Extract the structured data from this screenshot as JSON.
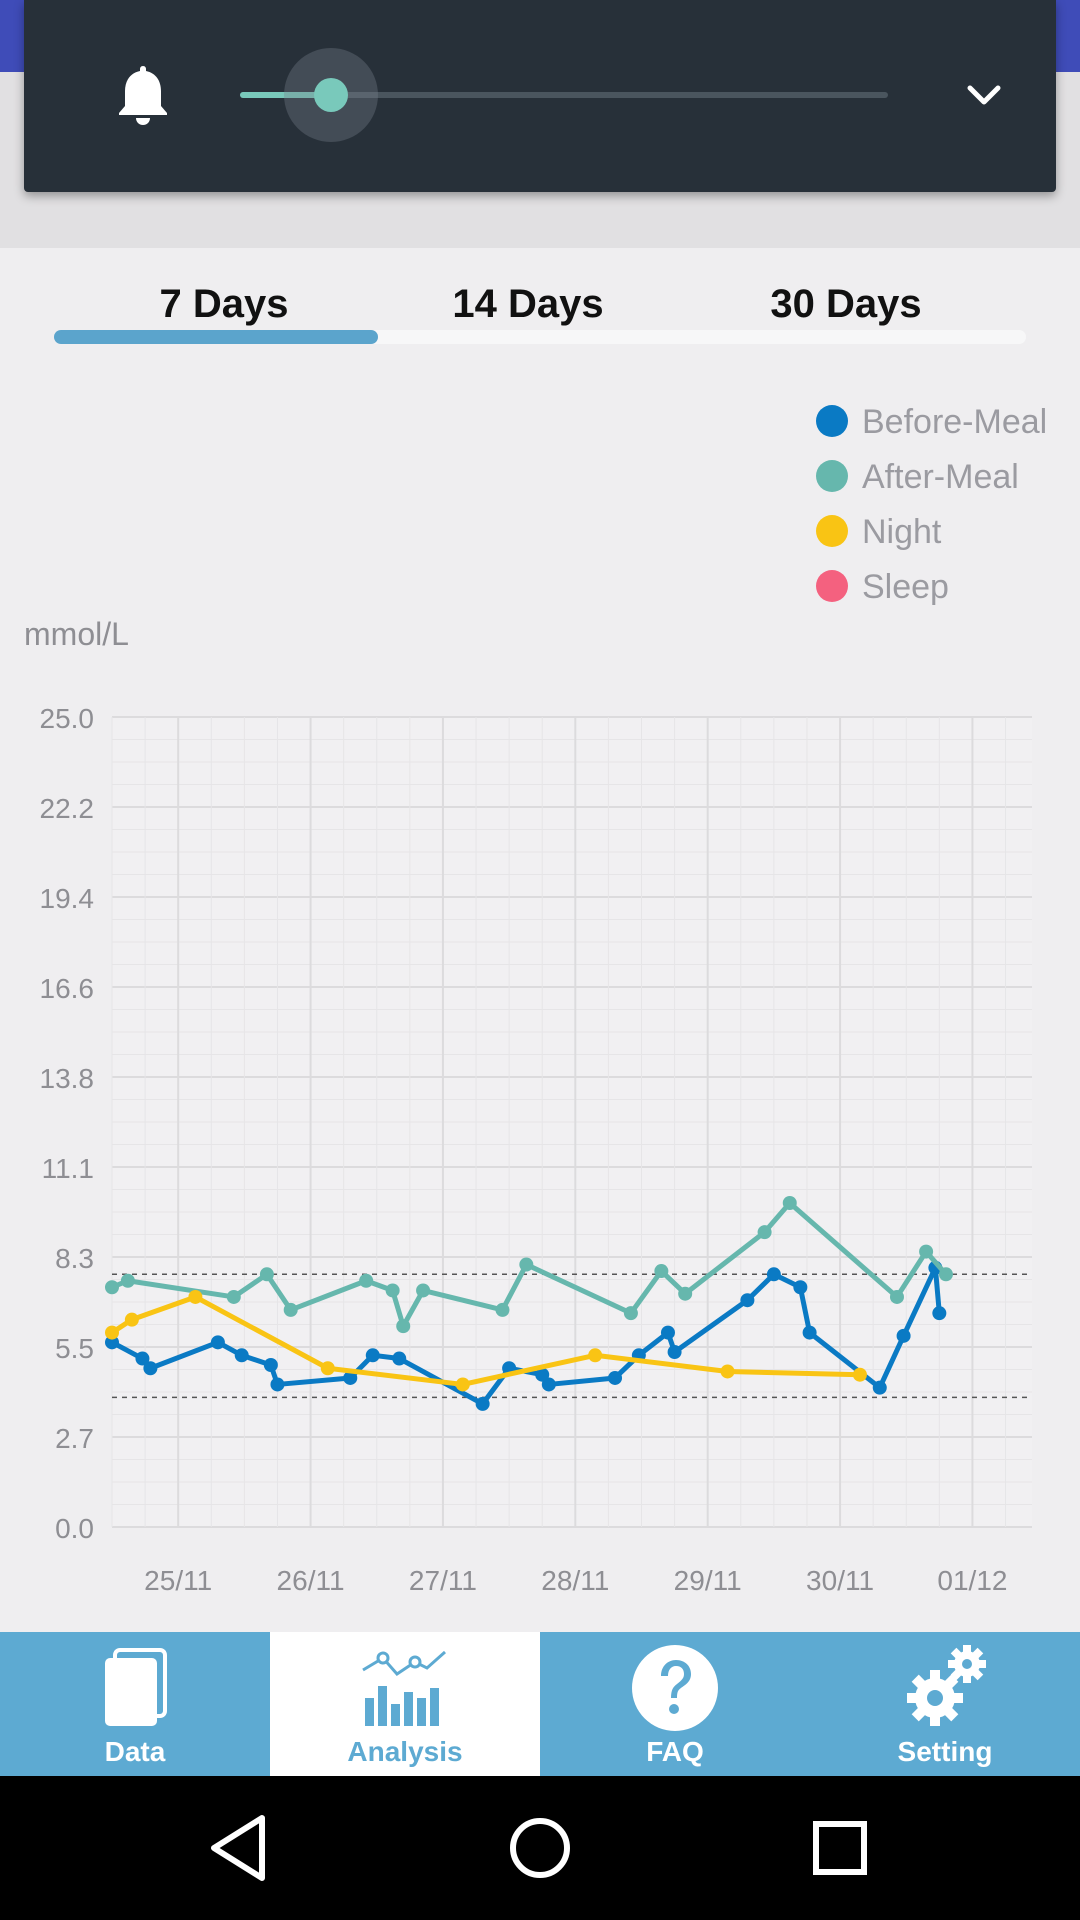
{
  "colors": {
    "before_meal": "#0a7ac4",
    "after_meal": "#66b7ad",
    "night": "#f9c414",
    "sleep": "#f4617f",
    "tab_accent": "#5ba4cc",
    "nav_background": "#5daad2"
  },
  "volume": {
    "level": 0.14
  },
  "tabs": [
    {
      "label": "7 Days",
      "selected": true
    },
    {
      "label": "14 Days",
      "selected": false
    },
    {
      "label": "30 Days",
      "selected": false
    }
  ],
  "legend": [
    {
      "label": "Before-Meal",
      "color": "#0a7ac4"
    },
    {
      "label": "After-Meal",
      "color": "#66b7ad"
    },
    {
      "label": "Night",
      "color": "#f9c414"
    },
    {
      "label": "Sleep",
      "color": "#f4617f"
    }
  ],
  "chart": {
    "unit": "mmol/L"
  },
  "chart_data": {
    "type": "line",
    "ylabel": "mmol/L",
    "ylim": [
      0,
      25
    ],
    "y_ticks": [
      "25.0",
      "22.2",
      "19.4",
      "16.6",
      "13.8",
      "11.1",
      "8.3",
      "5.5",
      "2.7",
      "0.0"
    ],
    "x_ticks": [
      "25/11",
      "26/11",
      "27/11",
      "28/11",
      "29/11",
      "30/11",
      "01/12"
    ],
    "x_tick_values": [
      1,
      2,
      3,
      4,
      5,
      6,
      7
    ],
    "xlim": [
      0.5,
      7.45
    ],
    "reference_lines": [
      7.8,
      4.0
    ],
    "grid": true,
    "legend_position": "top-right",
    "series": [
      {
        "name": "Before-Meal",
        "color": "#0a7ac4",
        "points": [
          [
            0.5,
            5.7
          ],
          [
            0.73,
            5.2
          ],
          [
            0.79,
            4.9
          ],
          [
            1.3,
            5.7
          ],
          [
            1.48,
            5.3
          ],
          [
            1.7,
            5.0
          ],
          [
            1.75,
            4.4
          ],
          [
            2.3,
            4.6
          ],
          [
            2.47,
            5.3
          ],
          [
            2.67,
            5.2
          ],
          [
            3.3,
            3.8
          ],
          [
            3.5,
            4.9
          ],
          [
            3.75,
            4.7
          ],
          [
            3.8,
            4.4
          ],
          [
            4.3,
            4.6
          ],
          [
            4.48,
            5.3
          ],
          [
            4.7,
            6.0
          ],
          [
            4.75,
            5.4
          ],
          [
            5.3,
            7.0
          ],
          [
            5.5,
            7.8
          ],
          [
            5.7,
            7.4
          ],
          [
            5.77,
            6.0
          ],
          [
            6.3,
            4.3
          ],
          [
            6.48,
            5.9
          ],
          [
            6.72,
            8.0
          ],
          [
            6.75,
            6.6
          ]
        ]
      },
      {
        "name": "After-Meal",
        "color": "#66b7ad",
        "points": [
          [
            0.5,
            7.4
          ],
          [
            0.62,
            7.6
          ],
          [
            1.42,
            7.1
          ],
          [
            1.67,
            7.8
          ],
          [
            1.85,
            6.7
          ],
          [
            2.42,
            7.6
          ],
          [
            2.62,
            7.3
          ],
          [
            2.7,
            6.2
          ],
          [
            2.85,
            7.3
          ],
          [
            3.45,
            6.7
          ],
          [
            3.63,
            8.1
          ],
          [
            4.42,
            6.6
          ],
          [
            4.65,
            7.9
          ],
          [
            4.83,
            7.2
          ],
          [
            5.43,
            9.1
          ],
          [
            5.62,
            10.0
          ],
          [
            6.43,
            7.1
          ],
          [
            6.65,
            8.5
          ],
          [
            6.8,
            7.8
          ]
        ]
      },
      {
        "name": "Night",
        "color": "#f9c414",
        "points": [
          [
            0.5,
            6.0
          ],
          [
            0.65,
            6.4
          ],
          [
            1.13,
            7.1
          ],
          [
            2.13,
            4.9
          ],
          [
            3.15,
            4.4
          ],
          [
            4.15,
            5.3
          ],
          [
            5.15,
            4.8
          ],
          [
            6.15,
            4.7
          ]
        ]
      },
      {
        "name": "Sleep",
        "color": "#f4617f",
        "points": []
      }
    ]
  },
  "bottom_nav": [
    {
      "label": "Data",
      "icon": "data-icon",
      "active": false
    },
    {
      "label": "Analysis",
      "icon": "analysis-icon",
      "active": true
    },
    {
      "label": "FAQ",
      "icon": "faq-icon",
      "active": false
    },
    {
      "label": "Setting",
      "icon": "setting-icon",
      "active": false
    }
  ],
  "system_nav": [
    "back-icon",
    "home-icon",
    "recents-icon"
  ]
}
